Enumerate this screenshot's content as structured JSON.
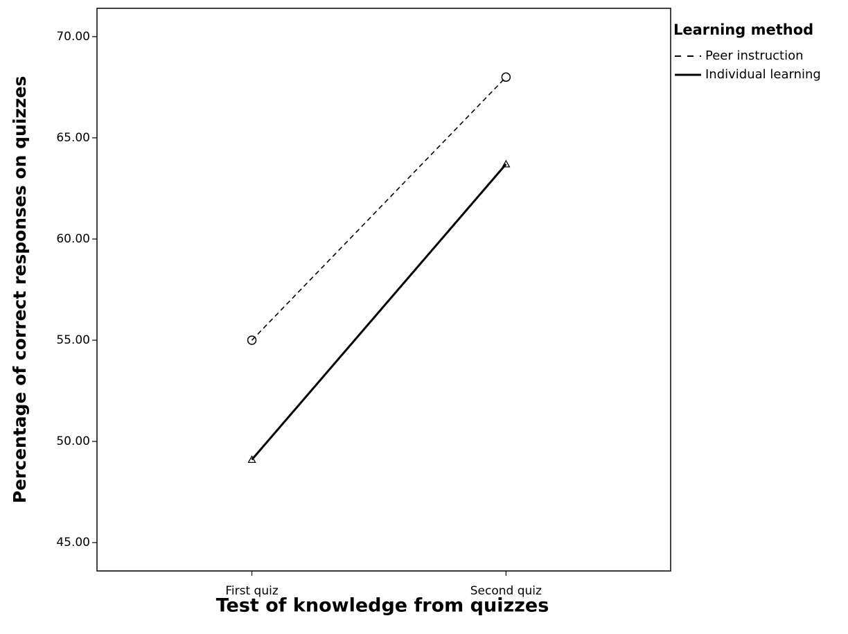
{
  "chart_data": {
    "type": "line",
    "x_label": "Test of knowledge from quizzes",
    "y_label": "Percentage of correct responses on quizzes",
    "legend_title": "Learning method",
    "categories": [
      "First quiz",
      "Second quiz"
    ],
    "series": [
      {
        "name": "Peer instruction",
        "color": "#000000",
        "dash": "dashed",
        "marker": "circle",
        "values": [
          55.0,
          68.0
        ]
      },
      {
        "name": "Individual learning",
        "color": "#000000",
        "dash": "solid",
        "marker": "triangle",
        "values": [
          49.1,
          63.7
        ]
      }
    ],
    "ylim": [
      43.6,
      71.4
    ],
    "yticks": [
      {
        "value": 45,
        "label": "45.00"
      },
      {
        "value": 50,
        "label": "50.00"
      },
      {
        "value": 55,
        "label": "55.00"
      },
      {
        "value": 60,
        "label": "60.00"
      },
      {
        "value": 65,
        "label": "65.00"
      },
      {
        "value": 70,
        "label": "70.00"
      }
    ],
    "legend": "right"
  }
}
